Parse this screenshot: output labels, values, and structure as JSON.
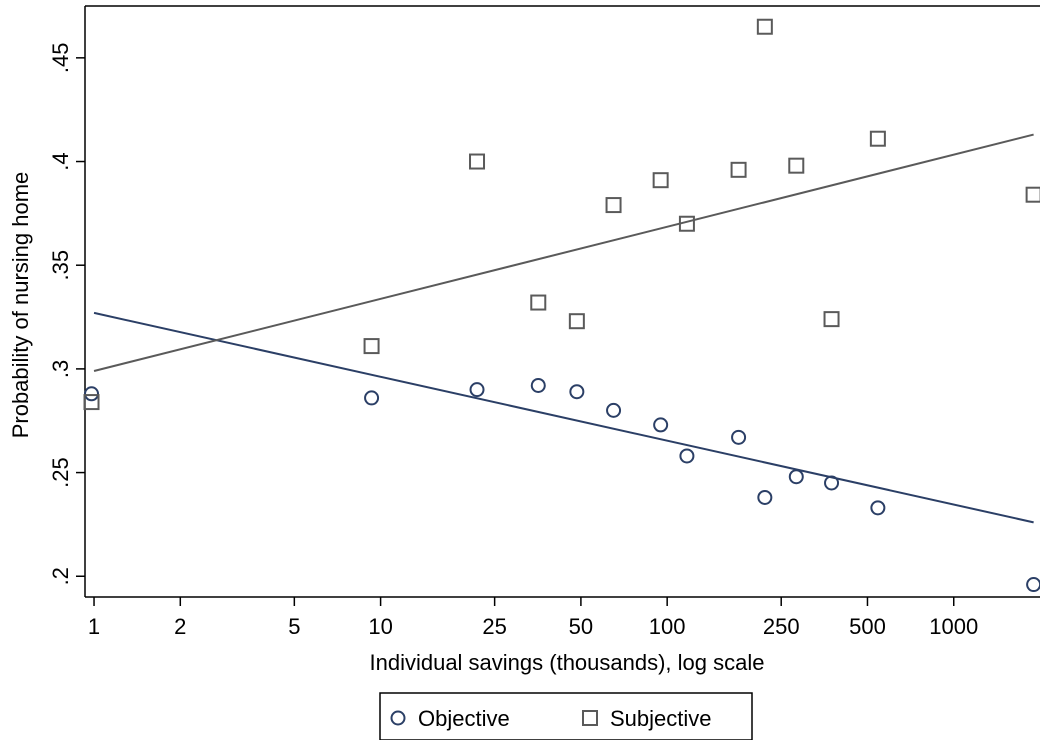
{
  "chart_data": {
    "type": "scatter",
    "title": "",
    "xlabel": "Individual savings (thousands), log scale",
    "ylabel": "Probability of nursing home",
    "x_scale": "log",
    "xlim": [
      0.93,
      2000
    ],
    "ylim": [
      0.19,
      0.475
    ],
    "x_ticks": [
      1,
      2,
      5,
      10,
      25,
      50,
      100,
      250,
      500,
      1000
    ],
    "x_tick_labels": [
      "1",
      "2",
      "5",
      "10",
      "25",
      "50",
      "100",
      "250",
      "500",
      "1000"
    ],
    "y_ticks": [
      0.2,
      0.25,
      0.3,
      0.35,
      0.4,
      0.45
    ],
    "y_tick_labels": [
      ".2",
      ".25",
      ".3",
      ".35",
      ".4",
      ".45"
    ],
    "grid": false,
    "legend_position": "bottom",
    "series": [
      {
        "name": "Objective",
        "marker": "circle",
        "color": "#2b3f66",
        "points": [
          {
            "x": 0.98,
            "y": 0.288
          },
          {
            "x": 9.3,
            "y": 0.286
          },
          {
            "x": 21.7,
            "y": 0.29
          },
          {
            "x": 35.5,
            "y": 0.292
          },
          {
            "x": 48.4,
            "y": 0.289
          },
          {
            "x": 65.0,
            "y": 0.28
          },
          {
            "x": 94.9,
            "y": 0.273
          },
          {
            "x": 117.2,
            "y": 0.258
          },
          {
            "x": 177.5,
            "y": 0.267
          },
          {
            "x": 219.2,
            "y": 0.238
          },
          {
            "x": 282.2,
            "y": 0.248
          },
          {
            "x": 374.6,
            "y": 0.245
          },
          {
            "x": 543.6,
            "y": 0.233
          },
          {
            "x": 1900.0,
            "y": 0.196
          }
        ],
        "fit_line": {
          "x": [
            1,
            1900
          ],
          "y": [
            0.327,
            0.226
          ]
        }
      },
      {
        "name": "Subjective",
        "marker": "square",
        "color": "#5a5a5a",
        "points": [
          {
            "x": 0.98,
            "y": 0.284
          },
          {
            "x": 9.3,
            "y": 0.311
          },
          {
            "x": 21.7,
            "y": 0.4
          },
          {
            "x": 35.5,
            "y": 0.332
          },
          {
            "x": 48.4,
            "y": 0.323
          },
          {
            "x": 65.0,
            "y": 0.379
          },
          {
            "x": 94.9,
            "y": 0.391
          },
          {
            "x": 117.2,
            "y": 0.37
          },
          {
            "x": 177.5,
            "y": 0.396
          },
          {
            "x": 219.2,
            "y": 0.465
          },
          {
            "x": 282.2,
            "y": 0.398
          },
          {
            "x": 374.6,
            "y": 0.324
          },
          {
            "x": 543.6,
            "y": 0.411
          },
          {
            "x": 1900.0,
            "y": 0.384
          }
        ],
        "fit_line": {
          "x": [
            1,
            1900
          ],
          "y": [
            0.299,
            0.413
          ]
        }
      }
    ]
  }
}
